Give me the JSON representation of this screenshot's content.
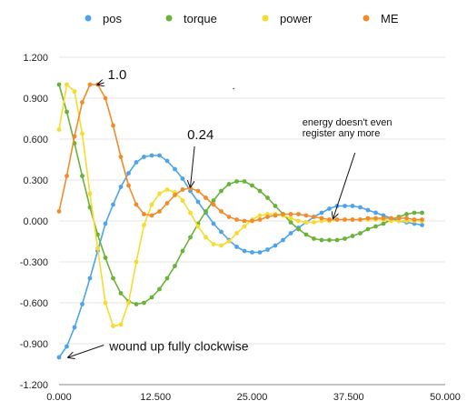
{
  "chart_data": {
    "type": "line",
    "xlim": [
      0,
      50
    ],
    "ylim": [
      -1.2,
      1.2
    ],
    "xticks": [
      "0.000",
      "12.500",
      "25.000",
      "37.500",
      "50.000"
    ],
    "yticks": [
      "1.200",
      "0.900",
      "0.600",
      "0.300",
      "0.000",
      "-0.300",
      "-0.600",
      "-0.900",
      "-1.200"
    ],
    "xtick_values": [
      0,
      12.5,
      25,
      37.5,
      50
    ],
    "ytick_values": [
      1.2,
      0.9,
      0.6,
      0.3,
      0,
      -0.3,
      -0.6,
      -0.9,
      -1.2
    ],
    "grid": "horizontal",
    "legend_position": "top",
    "series": [
      {
        "name": "pos",
        "color": "#4EA4E8",
        "points": [
          [
            0,
            -1.0
          ],
          [
            1,
            -0.92
          ],
          [
            2,
            -0.78
          ],
          [
            3,
            -0.61
          ],
          [
            4,
            -0.42
          ],
          [
            5,
            -0.22
          ],
          [
            6,
            -0.02
          ],
          [
            7,
            0.12
          ],
          [
            8,
            0.25
          ],
          [
            9,
            0.35
          ],
          [
            10,
            0.43
          ],
          [
            11,
            0.47
          ],
          [
            12,
            0.48
          ],
          [
            13,
            0.48
          ],
          [
            14,
            0.44
          ],
          [
            15,
            0.38
          ],
          [
            16,
            0.31
          ],
          [
            17,
            0.22
          ],
          [
            18,
            0.14
          ],
          [
            19,
            0.06
          ],
          [
            20,
            -0.02
          ],
          [
            21,
            -0.08
          ],
          [
            22,
            -0.14
          ],
          [
            23,
            -0.19
          ],
          [
            24,
            -0.22
          ],
          [
            25,
            -0.23
          ],
          [
            26,
            -0.23
          ],
          [
            27,
            -0.21
          ],
          [
            28,
            -0.18
          ],
          [
            29,
            -0.14
          ],
          [
            30,
            -0.09
          ],
          [
            31,
            -0.05
          ],
          [
            32,
            -0.01
          ],
          [
            33,
            0.03
          ],
          [
            34,
            0.06
          ],
          [
            35,
            0.09
          ],
          [
            36,
            0.11
          ],
          [
            37,
            0.11
          ],
          [
            38,
            0.11
          ],
          [
            39,
            0.1
          ],
          [
            40,
            0.08
          ],
          [
            41,
            0.06
          ],
          [
            42,
            0.04
          ],
          [
            43,
            0.02
          ],
          [
            44,
            0.0
          ],
          [
            45,
            -0.01
          ],
          [
            46,
            -0.02
          ],
          [
            47,
            -0.03
          ]
        ]
      },
      {
        "name": "torque",
        "color": "#6AB23A",
        "points": [
          [
            0,
            1.0
          ],
          [
            1,
            0.8
          ],
          [
            2,
            0.57
          ],
          [
            3,
            0.33
          ],
          [
            4,
            0.1
          ],
          [
            5,
            -0.1
          ],
          [
            6,
            -0.27
          ],
          [
            7,
            -0.42
          ],
          [
            8,
            -0.53
          ],
          [
            9,
            -0.59
          ],
          [
            10,
            -0.61
          ],
          [
            11,
            -0.6
          ],
          [
            12,
            -0.56
          ],
          [
            13,
            -0.5
          ],
          [
            14,
            -0.42
          ],
          [
            15,
            -0.33
          ],
          [
            16,
            -0.22
          ],
          [
            17,
            -0.12
          ],
          [
            18,
            -0.02
          ],
          [
            19,
            0.07
          ],
          [
            20,
            0.15
          ],
          [
            21,
            0.22
          ],
          [
            22,
            0.27
          ],
          [
            23,
            0.29
          ],
          [
            24,
            0.29
          ],
          [
            25,
            0.26
          ],
          [
            26,
            0.22
          ],
          [
            27,
            0.17
          ],
          [
            28,
            0.11
          ],
          [
            29,
            0.05
          ],
          [
            30,
            -0.01
          ],
          [
            31,
            -0.06
          ],
          [
            32,
            -0.1
          ],
          [
            33,
            -0.13
          ],
          [
            34,
            -0.14
          ],
          [
            35,
            -0.14
          ],
          [
            36,
            -0.14
          ],
          [
            37,
            -0.13
          ],
          [
            38,
            -0.11
          ],
          [
            39,
            -0.09
          ],
          [
            40,
            -0.06
          ],
          [
            41,
            -0.04
          ],
          [
            42,
            -0.02
          ],
          [
            43,
            0.01
          ],
          [
            44,
            0.03
          ],
          [
            45,
            0.05
          ],
          [
            46,
            0.06
          ],
          [
            47,
            0.06
          ]
        ]
      },
      {
        "name": "power",
        "color": "#F5DC2E",
        "points": [
          [
            0,
            0.67
          ],
          [
            1,
            1.0
          ],
          [
            2,
            0.95
          ],
          [
            3,
            0.64
          ],
          [
            4,
            0.2
          ],
          [
            5,
            -0.2
          ],
          [
            6,
            -0.6
          ],
          [
            7,
            -0.77
          ],
          [
            8,
            -0.76
          ],
          [
            9,
            -0.6
          ],
          [
            10,
            -0.3
          ],
          [
            11,
            -0.03
          ],
          [
            12,
            0.12
          ],
          [
            13,
            0.2
          ],
          [
            14,
            0.23
          ],
          [
            15,
            0.21
          ],
          [
            16,
            0.15
          ],
          [
            17,
            0.06
          ],
          [
            18,
            -0.04
          ],
          [
            19,
            -0.12
          ],
          [
            20,
            -0.17
          ],
          [
            21,
            -0.18
          ],
          [
            22,
            -0.15
          ],
          [
            23,
            -0.09
          ],
          [
            24,
            -0.04
          ],
          [
            25,
            0.01
          ],
          [
            26,
            0.04
          ],
          [
            27,
            0.05
          ],
          [
            28,
            0.05
          ],
          [
            29,
            0.04
          ],
          [
            30,
            0.02
          ],
          [
            31,
            0.0
          ],
          [
            32,
            -0.01
          ],
          [
            33,
            -0.01
          ],
          [
            34,
            0.0
          ],
          [
            35,
            0.0
          ],
          [
            36,
            0.01
          ],
          [
            37,
            0.01
          ],
          [
            38,
            0.01
          ],
          [
            39,
            0.01
          ],
          [
            40,
            0.01
          ],
          [
            41,
            0.01
          ],
          [
            42,
            0.01
          ],
          [
            43,
            0.0
          ],
          [
            44,
            0.0
          ],
          [
            45,
            0.0
          ],
          [
            46,
            0.0
          ],
          [
            47,
            0.0
          ]
        ]
      },
      {
        "name": "ME",
        "color": "#F08C2B",
        "points": [
          [
            0,
            0.07
          ],
          [
            1,
            0.33
          ],
          [
            2,
            0.62
          ],
          [
            3,
            0.87
          ],
          [
            4,
            1.0
          ],
          [
            5,
            1.0
          ],
          [
            6,
            0.9
          ],
          [
            7,
            0.7
          ],
          [
            8,
            0.47
          ],
          [
            9,
            0.26
          ],
          [
            10,
            0.12
          ],
          [
            11,
            0.05
          ],
          [
            12,
            0.04
          ],
          [
            13,
            0.07
          ],
          [
            14,
            0.13
          ],
          [
            15,
            0.19
          ],
          [
            16,
            0.23
          ],
          [
            17,
            0.24
          ],
          [
            18,
            0.22
          ],
          [
            19,
            0.17
          ],
          [
            20,
            0.12
          ],
          [
            21,
            0.07
          ],
          [
            22,
            0.03
          ],
          [
            23,
            0.01
          ],
          [
            24,
            0.0
          ],
          [
            25,
            0.0
          ],
          [
            26,
            0.01
          ],
          [
            27,
            0.03
          ],
          [
            28,
            0.04
          ],
          [
            29,
            0.05
          ],
          [
            30,
            0.05
          ],
          [
            31,
            0.05
          ],
          [
            32,
            0.04
          ],
          [
            33,
            0.03
          ],
          [
            34,
            0.02
          ],
          [
            35,
            0.01
          ],
          [
            36,
            0.01
          ],
          [
            37,
            0.01
          ],
          [
            38,
            0.01
          ],
          [
            39,
            0.01
          ],
          [
            40,
            0.02
          ],
          [
            41,
            0.02
          ],
          [
            42,
            0.02
          ],
          [
            43,
            0.02
          ],
          [
            44,
            0.02
          ],
          [
            45,
            0.02
          ],
          [
            46,
            0.01
          ],
          [
            47,
            0.01
          ]
        ]
      }
    ],
    "annotations": [
      {
        "text": "1.0",
        "x": 6.3,
        "y": 1.04,
        "arrow_to": [
          5.0,
          1.0
        ]
      },
      {
        "text": "0.24",
        "x": 16.6,
        "y": 0.6,
        "arrow_to": [
          17.0,
          0.25
        ]
      },
      {
        "text": "energy doesn't even",
        "x": 31.5,
        "y": 0.7,
        "arrow_to": [
          35.5,
          0.02
        ]
      },
      {
        "text": "register any more",
        "x": 31.5,
        "y": 0.62,
        "arrow_to": null
      },
      {
        "text": "wound up fully clockwise",
        "x": 6.5,
        "y": -0.95,
        "arrow_to": [
          1.2,
          -1.0
        ]
      }
    ]
  }
}
